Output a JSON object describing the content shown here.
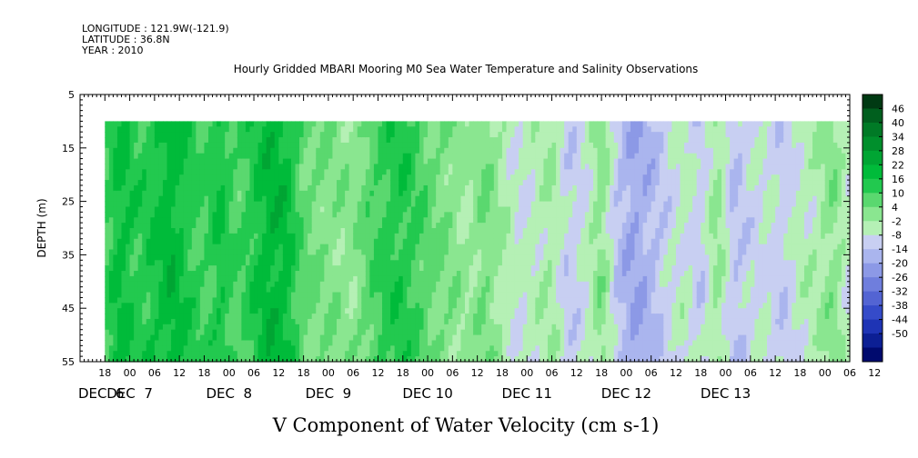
{
  "header": {
    "longitude": "LONGITUDE : 121.9W(-121.9)",
    "latitude": "LATITUDE : 36.8N",
    "year": "YEAR : 2010"
  },
  "chart_data": {
    "type": "heatmap",
    "title": "Hourly Gridded MBARI Mooring M0 Sea Water Temperature and Salinity Observations",
    "xlabel": "V Component of Water Velocity (cm s-1)",
    "ylabel": "DEPTH (m)",
    "ylim": [
      5,
      55
    ],
    "y_inverted": true,
    "y_ticks": [
      5,
      15,
      25,
      35,
      45,
      55
    ],
    "x_start_hour": 0,
    "x_end_hour": 186,
    "data_start_hour": 6,
    "data_end_hour": 186,
    "data_depth_range": [
      10,
      55
    ],
    "x_hour_tick_labels": [
      "18",
      "00",
      "06",
      "12",
      "18",
      "00",
      "06",
      "12",
      "18",
      "00",
      "06",
      "12",
      "18",
      "00",
      "06",
      "12",
      "18",
      "00",
      "06",
      "12",
      "18",
      "00",
      "06",
      "12",
      "18",
      "00",
      "06",
      "12",
      "18",
      "00",
      "06",
      "12"
    ],
    "x_day_labels": [
      "DEC  6",
      "DEC  7",
      "DEC  8",
      "DEC  9",
      "DEC 10",
      "DEC 11",
      "DEC 12",
      "DEC 13"
    ],
    "colorbar_levels": [
      48,
      46,
      40,
      34,
      28,
      22,
      16,
      10,
      4,
      -2,
      -8,
      -14,
      -20,
      -26,
      -32,
      -38,
      -44,
      -50
    ],
    "colorbar_labels": [
      "46",
      "40",
      "34",
      "28",
      "22",
      "16",
      "10",
      "4",
      "-2",
      "-8",
      "-14",
      "-20",
      "-26",
      "-32",
      "-38",
      "-44",
      "-50"
    ],
    "colorbar_colors": [
      "#003a13",
      "#005f1e",
      "#007a26",
      "#008f2c",
      "#00a533",
      "#00bb3a",
      "#22c94f",
      "#5ad86f",
      "#8ae690",
      "#b5f0b5",
      "#c8cff2",
      "#aab5ee",
      "#8c99e6",
      "#6f7edd",
      "#5364d3",
      "#354bc9",
      "#1e34b5",
      "#0c1f94",
      "#000a6e"
    ],
    "time_profile": [
      {
        "t": 6,
        "v": 10
      },
      {
        "t": 10,
        "v": 18
      },
      {
        "t": 14,
        "v": 12
      },
      {
        "t": 18,
        "v": 15
      },
      {
        "t": 22,
        "v": 20
      },
      {
        "t": 26,
        "v": 14
      },
      {
        "t": 30,
        "v": 9
      },
      {
        "t": 34,
        "v": 16
      },
      {
        "t": 38,
        "v": 8
      },
      {
        "t": 42,
        "v": 14
      },
      {
        "t": 46,
        "v": 20
      },
      {
        "t": 50,
        "v": 18
      },
      {
        "t": 54,
        "v": 6
      },
      {
        "t": 58,
        "v": 3
      },
      {
        "t": 62,
        "v": 2
      },
      {
        "t": 66,
        "v": 0
      },
      {
        "t": 70,
        "v": 8
      },
      {
        "t": 74,
        "v": 12
      },
      {
        "t": 78,
        "v": 14
      },
      {
        "t": 82,
        "v": 9
      },
      {
        "t": 86,
        "v": 4
      },
      {
        "t": 90,
        "v": 2
      },
      {
        "t": 94,
        "v": -2
      },
      {
        "t": 98,
        "v": 4
      },
      {
        "t": 102,
        "v": -3
      },
      {
        "t": 106,
        "v": -8
      },
      {
        "t": 110,
        "v": -6
      },
      {
        "t": 114,
        "v": -2
      },
      {
        "t": 118,
        "v": -12
      },
      {
        "t": 122,
        "v": -8
      },
      {
        "t": 126,
        "v": 2
      },
      {
        "t": 130,
        "v": -14
      },
      {
        "t": 134,
        "v": -20
      },
      {
        "t": 138,
        "v": -16
      },
      {
        "t": 142,
        "v": -10
      },
      {
        "t": 146,
        "v": -6
      },
      {
        "t": 150,
        "v": -12
      },
      {
        "t": 154,
        "v": 0
      },
      {
        "t": 158,
        "v": -14
      },
      {
        "t": 162,
        "v": -10
      },
      {
        "t": 166,
        "v": -8
      },
      {
        "t": 170,
        "v": -12
      },
      {
        "t": 174,
        "v": -6
      },
      {
        "t": 178,
        "v": -4
      },
      {
        "t": 182,
        "v": 2
      },
      {
        "t": 186,
        "v": -8
      }
    ]
  }
}
